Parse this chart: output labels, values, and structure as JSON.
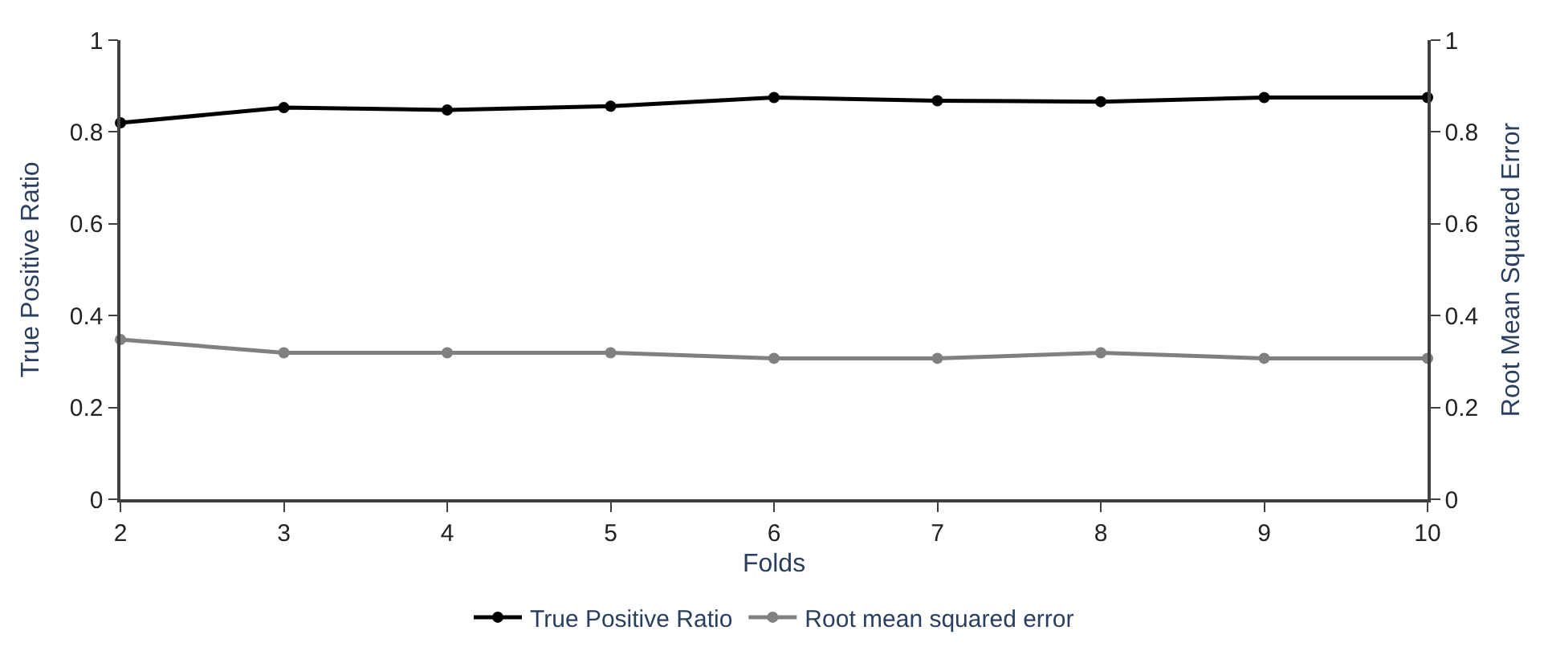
{
  "chart_data": {
    "type": "line",
    "xlabel": "Folds",
    "ylabel": "True Positive Ratio",
    "y2label": "Root Mean Squared Error",
    "x": [
      2,
      3,
      4,
      5,
      6,
      7,
      8,
      9,
      10
    ],
    "xlim": [
      2,
      10
    ],
    "xticks": [
      2,
      3,
      4,
      5,
      6,
      7,
      8,
      9,
      10
    ],
    "ylim": [
      0,
      1
    ],
    "yticks": [
      0,
      0.2,
      0.4,
      0.6,
      0.8,
      1
    ],
    "y2lim": [
      0,
      1
    ],
    "y2ticks": [
      0,
      0.2,
      0.4,
      0.6,
      0.8,
      1
    ],
    "series": [
      {
        "name": "True Positive Ratio",
        "color": "#000000",
        "values": [
          0.82,
          0.853,
          0.848,
          0.856,
          0.875,
          0.868,
          0.866,
          0.875,
          0.875
        ]
      },
      {
        "name": "Root mean squared error",
        "color": "#808080",
        "axis": "y2",
        "values": [
          0.348,
          0.319,
          0.319,
          0.319,
          0.307,
          0.307,
          0.319,
          0.307,
          0.307
        ]
      }
    ],
    "marker": "circle",
    "line_style": "solid",
    "legend": "bottom"
  }
}
